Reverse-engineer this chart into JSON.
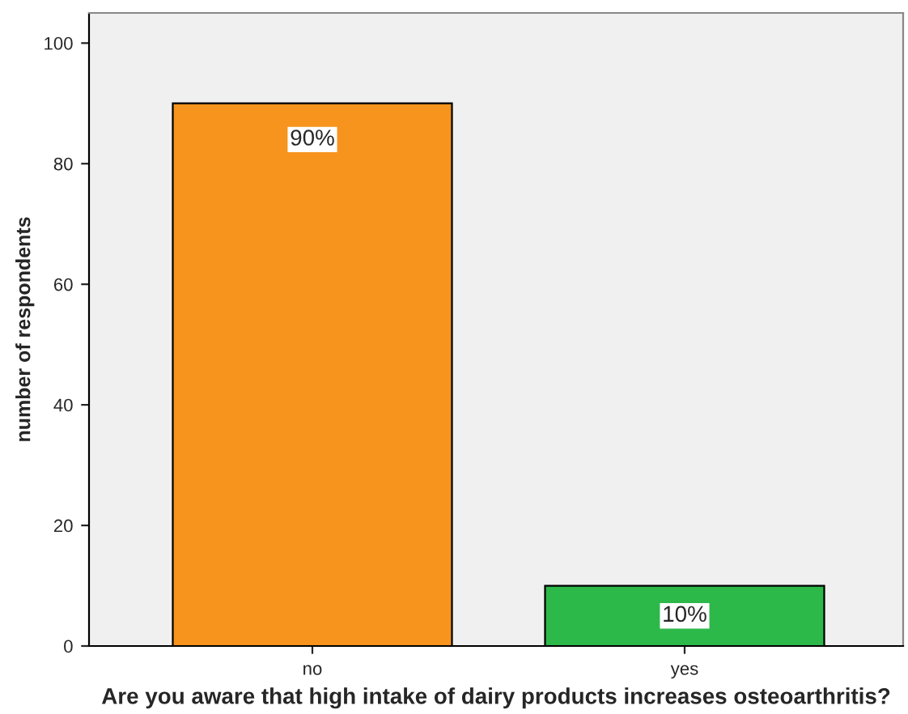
{
  "chart_data": {
    "type": "bar",
    "xlabel": "Are you aware that high intake of dairy products increases osteoarthritis?",
    "ylabel": "number of respondents",
    "categories": [
      "no",
      "yes"
    ],
    "values": [
      90,
      10
    ],
    "colors": [
      "#f7941d",
      "#2db84a"
    ],
    "value_labels": [
      "90%",
      "10%"
    ],
    "ylim": [
      0,
      105
    ],
    "yticks": [
      0,
      20,
      40,
      60,
      80,
      100
    ],
    "grid": false,
    "legend": false
  }
}
